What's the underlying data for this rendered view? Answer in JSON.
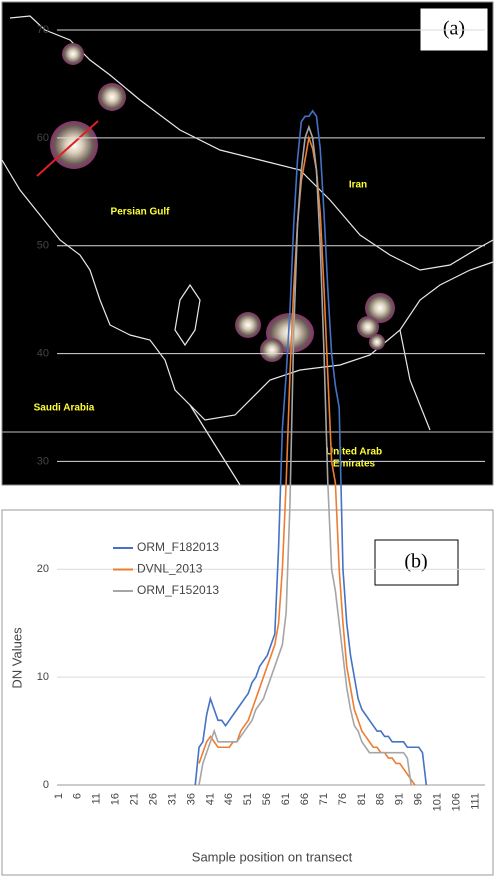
{
  "map": {
    "panel_label": "(a)",
    "labels": [
      "Iran",
      "Persian Gulf",
      "Saudi Arabia"
    ],
    "uae": [
      "United Arab",
      "Emirates"
    ]
  },
  "chart_data": {
    "type": "line",
    "panel_label": "(b)",
    "x_label": "Sample position on transect",
    "y_label": "DN Values",
    "categories": [
      1,
      null,
      null,
      null,
      null,
      6,
      null,
      null,
      null,
      null,
      11,
      null,
      null,
      null,
      null,
      16,
      null,
      null,
      null,
      null,
      21,
      null,
      null,
      null,
      null,
      26,
      null,
      null,
      null,
      null,
      31,
      null,
      null,
      null,
      null,
      36,
      null,
      null,
      null,
      null,
      41,
      null,
      null,
      null,
      null,
      46,
      null,
      null,
      null,
      null,
      51,
      null,
      null,
      null,
      null,
      56,
      null,
      null,
      null,
      null,
      61,
      null,
      null,
      null,
      null,
      66,
      null,
      null,
      null,
      null,
      71,
      null,
      null,
      null,
      null,
      76,
      null,
      null,
      null,
      null,
      81,
      null,
      null,
      null,
      null,
      86,
      null,
      null,
      null,
      null,
      91,
      null,
      null,
      null,
      null,
      96,
      null,
      null,
      null,
      null,
      101,
      null,
      null,
      null,
      null,
      106,
      null,
      null,
      null,
      null,
      111,
      null,
      null
    ],
    "ylim": [
      0,
      70
    ],
    "yticks": [
      0,
      10,
      20,
      30,
      40,
      50,
      60,
      70
    ],
    "grid": true,
    "series": [
      {
        "name": "ORM_F182013",
        "color": "#4472c4",
        "values": [
          null,
          null,
          null,
          null,
          null,
          null,
          null,
          null,
          null,
          null,
          null,
          null,
          null,
          null,
          null,
          null,
          null,
          null,
          null,
          null,
          null,
          null,
          null,
          null,
          null,
          null,
          null,
          null,
          null,
          null,
          null,
          null,
          null,
          null,
          null,
          null,
          0,
          3.5,
          4,
          6.5,
          8,
          7,
          6,
          6,
          5.5,
          6,
          6.5,
          7,
          7.5,
          8,
          8.5,
          9.5,
          10,
          11,
          11.5,
          12,
          13,
          14,
          22,
          33,
          38,
          44,
          52,
          58,
          61.5,
          62,
          62,
          62.5,
          62,
          59,
          53,
          46,
          40,
          37,
          35,
          20,
          15,
          12,
          10,
          8,
          7,
          6.5,
          6,
          5.5,
          5,
          5,
          4.5,
          4.5,
          4,
          4,
          4,
          4,
          3.5,
          3.5,
          3.5,
          3.5,
          3,
          0,
          null,
          null,
          null,
          null,
          null,
          null,
          null,
          null,
          null,
          null,
          null,
          null,
          null,
          null,
          null
        ]
      },
      {
        "name": "DVNL_2013",
        "color": "#ed7d31",
        "values": [
          null,
          null,
          null,
          null,
          null,
          null,
          null,
          null,
          null,
          null,
          null,
          null,
          null,
          null,
          null,
          null,
          null,
          null,
          null,
          null,
          null,
          null,
          null,
          null,
          null,
          null,
          null,
          null,
          null,
          null,
          null,
          null,
          null,
          null,
          null,
          null,
          null,
          2,
          3,
          4,
          4.5,
          4,
          3.5,
          3.5,
          3.5,
          3.5,
          4,
          4,
          5,
          5.5,
          6,
          7,
          8,
          9,
          10,
          11,
          12,
          13,
          15,
          20,
          28,
          38,
          46,
          52,
          56,
          58,
          60,
          59,
          57,
          53,
          46,
          38,
          30,
          28,
          20,
          15,
          11,
          9,
          7,
          6,
          5,
          4.5,
          4,
          3.5,
          3.5,
          3,
          3,
          2.5,
          2.5,
          2,
          2,
          1.5,
          1,
          0.5,
          0,
          null,
          null,
          null,
          null,
          null,
          null,
          null,
          null,
          null,
          null,
          null,
          null,
          null,
          null,
          null,
          null,
          null,
          null
        ]
      },
      {
        "name": "ORM_F152013",
        "color": "#a5a5a5",
        "values": [
          null,
          null,
          null,
          null,
          null,
          null,
          null,
          null,
          null,
          null,
          null,
          null,
          null,
          null,
          null,
          null,
          null,
          null,
          null,
          null,
          null,
          null,
          null,
          null,
          null,
          null,
          null,
          null,
          null,
          null,
          null,
          null,
          null,
          null,
          null,
          null,
          null,
          0,
          2,
          3,
          4,
          5,
          4,
          4,
          4,
          4,
          4,
          4,
          4.5,
          5,
          5.5,
          6,
          7,
          7.5,
          8,
          9,
          10,
          11,
          12,
          13,
          16,
          26,
          42,
          52,
          57,
          60,
          61,
          60,
          57,
          50,
          40,
          28,
          20,
          18,
          15,
          12,
          9,
          7,
          5.5,
          5,
          4,
          3.5,
          3,
          3,
          3,
          3,
          3,
          3,
          3,
          3,
          3,
          3,
          2.5,
          0,
          null,
          null,
          null,
          null,
          null,
          null,
          null,
          null,
          null,
          null,
          null,
          null,
          null,
          null,
          null,
          null,
          null,
          null,
          null
        ]
      }
    ]
  }
}
